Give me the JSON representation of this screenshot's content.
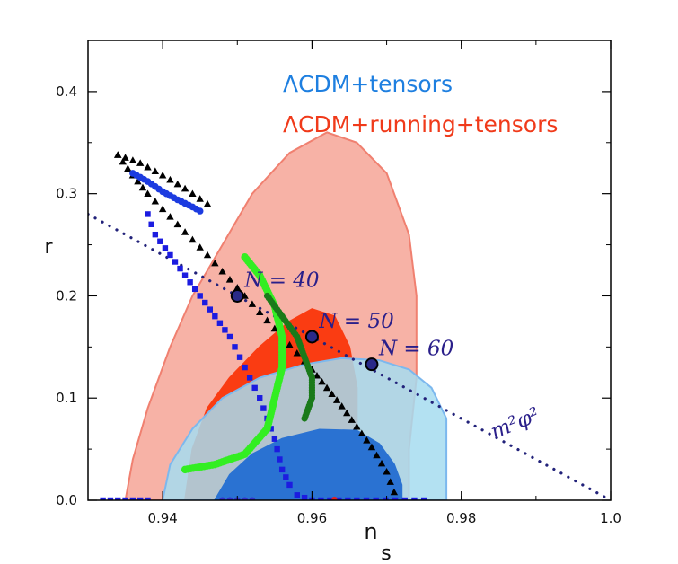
{
  "chart_data": {
    "type": "scatter",
    "title": "",
    "xlabel_main": "n",
    "xlabel_sub": "s",
    "ylabel": "r",
    "xlim": [
      0.93,
      1.0
    ],
    "ylim": [
      0.0,
      0.45
    ],
    "x_ticks": [
      0.94,
      0.96,
      0.98,
      1.0
    ],
    "x_tick_labels": [
      "0.94",
      "0.96",
      "0.98",
      "1.0"
    ],
    "y_ticks": [
      0.0,
      0.1,
      0.2,
      0.3,
      0.4
    ],
    "y_tick_labels": [
      "0.0",
      "0.1",
      "0.2",
      "0.3",
      "0.4"
    ],
    "legend": [
      {
        "label": "ΛCDM+tensors",
        "color": "#1e7fe0"
      },
      {
        "label": "ΛCDM+running+tensors",
        "color": "#f03a1a"
      }
    ],
    "contours": [
      {
        "name": "ΛCDM+running+tensors 95%",
        "fill": "#f7b2a6",
        "stroke": "#f08070",
        "points": [
          [
            0.935,
            0.0
          ],
          [
            0.936,
            0.04
          ],
          [
            0.938,
            0.09
          ],
          [
            0.941,
            0.15
          ],
          [
            0.944,
            0.2
          ],
          [
            0.948,
            0.25
          ],
          [
            0.952,
            0.3
          ],
          [
            0.957,
            0.34
          ],
          [
            0.962,
            0.36
          ],
          [
            0.966,
            0.35
          ],
          [
            0.97,
            0.32
          ],
          [
            0.973,
            0.26
          ],
          [
            0.974,
            0.2
          ],
          [
            0.974,
            0.12
          ],
          [
            0.973,
            0.05
          ],
          [
            0.973,
            0.0
          ]
        ]
      },
      {
        "name": "ΛCDM+running+tensors 68%",
        "fill": "#fa3c12",
        "stroke": "#fa3c12",
        "points": [
          [
            0.943,
            0.0
          ],
          [
            0.944,
            0.05
          ],
          [
            0.946,
            0.09
          ],
          [
            0.949,
            0.12
          ],
          [
            0.953,
            0.15
          ],
          [
            0.957,
            0.175
          ],
          [
            0.96,
            0.187
          ],
          [
            0.963,
            0.18
          ],
          [
            0.965,
            0.15
          ],
          [
            0.966,
            0.11
          ],
          [
            0.966,
            0.06
          ],
          [
            0.965,
            0.0
          ]
        ]
      },
      {
        "name": "ΛCDM+tensors 95%",
        "fill": "#a6dcf0",
        "stroke": "#7cb8ee",
        "points": [
          [
            0.94,
            0.0
          ],
          [
            0.941,
            0.035
          ],
          [
            0.944,
            0.07
          ],
          [
            0.948,
            0.1
          ],
          [
            0.953,
            0.12
          ],
          [
            0.959,
            0.133
          ],
          [
            0.964,
            0.139
          ],
          [
            0.969,
            0.137
          ],
          [
            0.973,
            0.128
          ],
          [
            0.976,
            0.11
          ],
          [
            0.978,
            0.08
          ],
          [
            0.978,
            0.04
          ],
          [
            0.978,
            0.0
          ]
        ]
      },
      {
        "name": "ΛCDM+tensors 68%",
        "fill": "#2a72d2",
        "stroke": "#2a72d2",
        "points": [
          [
            0.947,
            0.0
          ],
          [
            0.949,
            0.025
          ],
          [
            0.952,
            0.045
          ],
          [
            0.956,
            0.06
          ],
          [
            0.961,
            0.069
          ],
          [
            0.966,
            0.068
          ],
          [
            0.969,
            0.055
          ],
          [
            0.971,
            0.035
          ],
          [
            0.972,
            0.015
          ],
          [
            0.972,
            0.0
          ]
        ]
      }
    ],
    "series": [
      {
        "name": "m2phi2 line",
        "type": "dotted-line",
        "color": "#22227a",
        "points": [
          [
            0.93,
            0.28
          ],
          [
            1.0,
            0.0
          ]
        ]
      },
      {
        "name": "black triangles",
        "marker": "triangle",
        "color": "#000000",
        "points": [
          [
            0.934,
            0.338
          ],
          [
            0.936,
            0.318
          ],
          [
            0.938,
            0.3
          ],
          [
            0.94,
            0.285
          ],
          [
            0.942,
            0.27
          ],
          [
            0.944,
            0.255
          ],
          [
            0.946,
            0.24
          ],
          [
            0.948,
            0.224
          ],
          [
            0.95,
            0.208
          ],
          [
            0.952,
            0.192
          ],
          [
            0.954,
            0.176
          ],
          [
            0.956,
            0.16
          ],
          [
            0.958,
            0.144
          ],
          [
            0.96,
            0.128
          ],
          [
            0.962,
            0.11
          ],
          [
            0.964,
            0.092
          ],
          [
            0.966,
            0.072
          ],
          [
            0.968,
            0.052
          ],
          [
            0.97,
            0.028
          ],
          [
            0.971,
            0.008
          ]
        ]
      },
      {
        "name": "black upper branch",
        "marker": "triangle",
        "color": "#000000",
        "points": [
          [
            0.934,
            0.338
          ],
          [
            0.937,
            0.33
          ],
          [
            0.94,
            0.318
          ],
          [
            0.943,
            0.305
          ],
          [
            0.946,
            0.29
          ]
        ]
      },
      {
        "name": "blue upper branch",
        "marker": "circle",
        "color": "#1c3be0",
        "points": [
          [
            0.936,
            0.32
          ],
          [
            0.938,
            0.312
          ],
          [
            0.94,
            0.302
          ],
          [
            0.942,
            0.294
          ],
          [
            0.944,
            0.287
          ],
          [
            0.945,
            0.283
          ]
        ]
      },
      {
        "name": "blue lower branch",
        "marker": "square",
        "color": "#1c1ce0",
        "points": [
          [
            0.938,
            0.28
          ],
          [
            0.939,
            0.26
          ],
          [
            0.941,
            0.24
          ],
          [
            0.943,
            0.22
          ],
          [
            0.945,
            0.2
          ],
          [
            0.947,
            0.18
          ],
          [
            0.949,
            0.16
          ],
          [
            0.951,
            0.13
          ],
          [
            0.953,
            0.1
          ],
          [
            0.955,
            0.06
          ],
          [
            0.956,
            0.03
          ],
          [
            0.957,
            0.015
          ],
          [
            0.958,
            0.005
          ],
          [
            0.96,
            0.0
          ],
          [
            0.966,
            0.0
          ],
          [
            0.975,
            0.0
          ]
        ]
      },
      {
        "name": "blue floor",
        "marker": "square",
        "color": "#1c1ce0",
        "points": [
          [
            0.932,
            0.0
          ],
          [
            0.934,
            0.0
          ],
          [
            0.936,
            0.0
          ],
          [
            0.938,
            0.0
          ]
        ]
      },
      {
        "name": "bright green track",
        "marker": "circle",
        "color": "#33ee22",
        "points": [
          [
            0.951,
            0.238
          ],
          [
            0.953,
            0.22
          ],
          [
            0.955,
            0.19
          ],
          [
            0.956,
            0.16
          ],
          [
            0.956,
            0.13
          ],
          [
            0.955,
            0.1
          ],
          [
            0.954,
            0.07
          ],
          [
            0.951,
            0.045
          ],
          [
            0.947,
            0.035
          ],
          [
            0.943,
            0.03
          ]
        ]
      },
      {
        "name": "dark green track",
        "marker": "circle",
        "color": "#1a7a1a",
        "points": [
          [
            0.954,
            0.2
          ],
          [
            0.956,
            0.18
          ],
          [
            0.958,
            0.16
          ],
          [
            0.959,
            0.14
          ],
          [
            0.96,
            0.12
          ],
          [
            0.96,
            0.1
          ],
          [
            0.959,
            0.08
          ]
        ]
      },
      {
        "name": "blue tiny floor",
        "marker": "circle",
        "color": "#3333cc",
        "points": [
          [
            0.948,
            0.0
          ],
          [
            0.95,
            0.0
          ],
          [
            0.952,
            0.0
          ]
        ]
      }
    ],
    "highlight_points": [
      {
        "label": "N = 40",
        "x": 0.95,
        "y": 0.2
      },
      {
        "label": "N = 50",
        "x": 0.96,
        "y": 0.16
      },
      {
        "label": "N = 60",
        "x": 0.968,
        "y": 0.133
      }
    ],
    "annotations": [
      {
        "text": "m²φ²",
        "at": [
          0.988,
          0.06
        ]
      }
    ],
    "red_marker": {
      "x": 0.963,
      "y": 0.001,
      "color": "#e02020"
    }
  }
}
